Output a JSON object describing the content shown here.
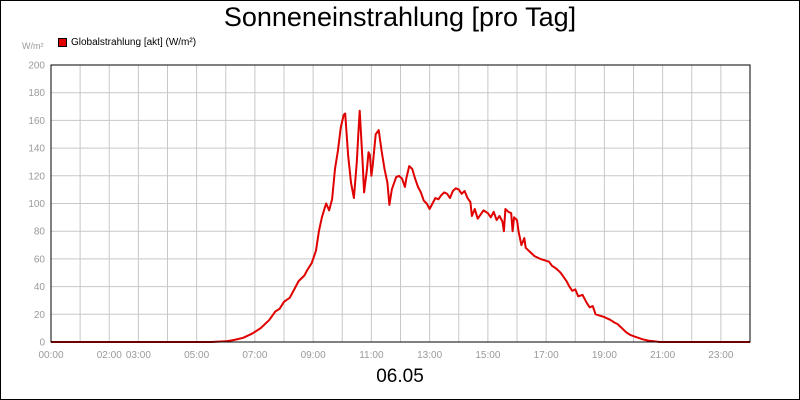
{
  "chart_data": {
    "type": "line",
    "title": "Sonneneinstrahlung [pro Tag]",
    "ylabel": "W/m²",
    "date_label": "06.05",
    "ylim": [
      0,
      200
    ],
    "yticks": [
      0,
      20,
      40,
      60,
      80,
      100,
      120,
      140,
      160,
      180,
      200
    ],
    "xlim": [
      0,
      24
    ],
    "xticks": [
      {
        "x": 0,
        "label": "00:00"
      },
      {
        "x": 2,
        "label": "02:00"
      },
      {
        "x": 3,
        "label": "03:00"
      },
      {
        "x": 5,
        "label": "05:00"
      },
      {
        "x": 7,
        "label": "07:00"
      },
      {
        "x": 9,
        "label": "09:00"
      },
      {
        "x": 11,
        "label": "11:00"
      },
      {
        "x": 13,
        "label": "13:00"
      },
      {
        "x": 15,
        "label": "15:00"
      },
      {
        "x": 17,
        "label": "17:00"
      },
      {
        "x": 19,
        "label": "19:00"
      },
      {
        "x": 21,
        "label": "21:00"
      },
      {
        "x": 23,
        "label": "23:00"
      }
    ],
    "grid": true,
    "legend_position": "top-left",
    "colors": {
      "series": "#e00000",
      "grid": "#c8c8c8",
      "axis": "#000000"
    },
    "series": [
      {
        "name": "Globalstrahlung [akt] (W/m²)",
        "points": [
          [
            0,
            0
          ],
          [
            5.5,
            0
          ],
          [
            6.0,
            0.5
          ],
          [
            6.3,
            1.5
          ],
          [
            6.6,
            3
          ],
          [
            6.9,
            6
          ],
          [
            7.2,
            10
          ],
          [
            7.5,
            16
          ],
          [
            7.7,
            22
          ],
          [
            7.85,
            24
          ],
          [
            8.0,
            29
          ],
          [
            8.2,
            32
          ],
          [
            8.4,
            40
          ],
          [
            8.5,
            44
          ],
          [
            8.7,
            48
          ],
          [
            8.8,
            52
          ],
          [
            8.95,
            57
          ],
          [
            9.1,
            66
          ],
          [
            9.2,
            80
          ],
          [
            9.3,
            90
          ],
          [
            9.4,
            97
          ],
          [
            9.45,
            100
          ],
          [
            9.55,
            95
          ],
          [
            9.65,
            103
          ],
          [
            9.75,
            125
          ],
          [
            9.85,
            138
          ],
          [
            9.95,
            155
          ],
          [
            10.05,
            164
          ],
          [
            10.1,
            165
          ],
          [
            10.2,
            135
          ],
          [
            10.3,
            115
          ],
          [
            10.4,
            104
          ],
          [
            10.5,
            130
          ],
          [
            10.55,
            150
          ],
          [
            10.6,
            167
          ],
          [
            10.7,
            130
          ],
          [
            10.75,
            108
          ],
          [
            10.85,
            125
          ],
          [
            10.9,
            137
          ],
          [
            10.95,
            135
          ],
          [
            11.0,
            120
          ],
          [
            11.05,
            128
          ],
          [
            11.15,
            150
          ],
          [
            11.25,
            153
          ],
          [
            11.35,
            138
          ],
          [
            11.45,
            125
          ],
          [
            11.55,
            115
          ],
          [
            11.62,
            99
          ],
          [
            11.7,
            110
          ],
          [
            11.85,
            119
          ],
          [
            11.95,
            120
          ],
          [
            12.05,
            118
          ],
          [
            12.15,
            112
          ],
          [
            12.2,
            118
          ],
          [
            12.3,
            127
          ],
          [
            12.4,
            125
          ],
          [
            12.5,
            118
          ],
          [
            12.6,
            112
          ],
          [
            12.7,
            108
          ],
          [
            12.8,
            102
          ],
          [
            12.9,
            100
          ],
          [
            13.0,
            96
          ],
          [
            13.1,
            100
          ],
          [
            13.2,
            104
          ],
          [
            13.3,
            103
          ],
          [
            13.4,
            106
          ],
          [
            13.5,
            108
          ],
          [
            13.6,
            107
          ],
          [
            13.7,
            104
          ],
          [
            13.8,
            109
          ],
          [
            13.9,
            111
          ],
          [
            14.0,
            110
          ],
          [
            14.1,
            107
          ],
          [
            14.2,
            109
          ],
          [
            14.3,
            104
          ],
          [
            14.4,
            101
          ],
          [
            14.45,
            91
          ],
          [
            14.55,
            96
          ],
          [
            14.65,
            89
          ],
          [
            14.75,
            92
          ],
          [
            14.85,
            95
          ],
          [
            15.0,
            93
          ],
          [
            15.1,
            90
          ],
          [
            15.2,
            94
          ],
          [
            15.3,
            88
          ],
          [
            15.4,
            91
          ],
          [
            15.5,
            87
          ],
          [
            15.55,
            80
          ],
          [
            15.6,
            96
          ],
          [
            15.7,
            94
          ],
          [
            15.8,
            93
          ],
          [
            15.85,
            80
          ],
          [
            15.9,
            90
          ],
          [
            16.0,
            88
          ],
          [
            16.05,
            80
          ],
          [
            16.15,
            70
          ],
          [
            16.25,
            75
          ],
          [
            16.3,
            68
          ],
          [
            16.45,
            65
          ],
          [
            16.6,
            62
          ],
          [
            16.8,
            60
          ],
          [
            16.95,
            59
          ],
          [
            17.1,
            58
          ],
          [
            17.2,
            55
          ],
          [
            17.35,
            53
          ],
          [
            17.5,
            50
          ],
          [
            17.7,
            44
          ],
          [
            17.8,
            40
          ],
          [
            17.9,
            37
          ],
          [
            18.0,
            38
          ],
          [
            18.1,
            33
          ],
          [
            18.25,
            34
          ],
          [
            18.4,
            28
          ],
          [
            18.5,
            25
          ],
          [
            18.6,
            26
          ],
          [
            18.7,
            20
          ],
          [
            18.85,
            19
          ],
          [
            19.0,
            18
          ],
          [
            19.2,
            16
          ],
          [
            19.35,
            14
          ],
          [
            19.45,
            13
          ],
          [
            19.6,
            10
          ],
          [
            19.75,
            7
          ],
          [
            19.9,
            5
          ],
          [
            20.1,
            3.5
          ],
          [
            20.3,
            2
          ],
          [
            20.5,
            1
          ],
          [
            20.7,
            0.5
          ],
          [
            20.9,
            0
          ],
          [
            24,
            0
          ]
        ]
      }
    ]
  }
}
